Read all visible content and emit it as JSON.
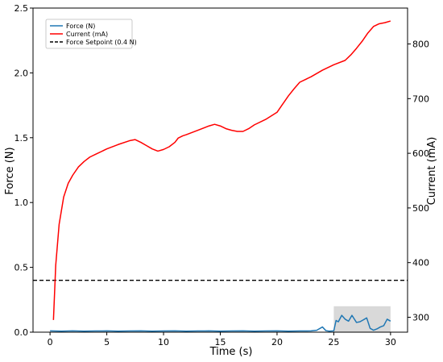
{
  "chart_data": {
    "type": "line",
    "title": "",
    "xlabel": "Time (s)",
    "ylabel_left": "Force (N)",
    "ylabel_right": "Current (mA)",
    "xlim": [
      -1.5,
      31.5
    ],
    "ylim_left": [
      0,
      2.5
    ],
    "ylim_right": [
      272.7,
      865.7
    ],
    "x_ticks": [
      0,
      5,
      10,
      15,
      20,
      25,
      30
    ],
    "y_ticks_left": [
      0.0,
      0.5,
      1.0,
      1.5,
      2.0,
      2.5
    ],
    "y_ticks_right": [
      300,
      400,
      500,
      600,
      700,
      800
    ],
    "grid": false,
    "legend_position": "top-left",
    "shaded_region": {
      "x": [
        25,
        30
      ],
      "y": [
        0,
        0.2
      ],
      "color": "#d9d9d9"
    },
    "series": [
      {
        "name": "Force (N)",
        "axis": "left",
        "color": "#1f77b4",
        "style": "solid",
        "x": [
          0,
          1,
          2,
          3,
          4,
          5,
          6,
          7,
          8,
          9,
          10,
          11,
          12,
          13,
          14,
          15,
          16,
          17,
          18,
          19,
          20,
          21,
          22,
          23,
          23.5,
          24,
          24.3,
          24.6,
          25,
          25.2,
          25.4,
          25.7,
          26,
          26.3,
          26.6,
          27,
          27.3,
          27.6,
          27.9,
          28.2,
          28.5,
          28.8,
          29.1,
          29.4,
          29.7,
          30
        ],
        "values": [
          0.01,
          0.008,
          0.01,
          0.008,
          0.009,
          0.01,
          0.008,
          0.009,
          0.01,
          0.008,
          0.009,
          0.01,
          0.008,
          0.009,
          0.01,
          0.008,
          0.009,
          0.01,
          0.008,
          0.009,
          0.01,
          0.008,
          0.009,
          0.01,
          0.015,
          0.04,
          0.012,
          0.008,
          0.01,
          0.09,
          0.08,
          0.13,
          0.1,
          0.085,
          0.13,
          0.075,
          0.08,
          0.095,
          0.11,
          0.03,
          0.015,
          0.025,
          0.04,
          0.05,
          0.1,
          0.085
        ]
      },
      {
        "name": "Current (mA)",
        "axis": "right",
        "color": "#ff0000",
        "style": "solid",
        "x": [
          0.3,
          0.5,
          0.8,
          1.2,
          1.6,
          2,
          2.5,
          3,
          3.5,
          4,
          5,
          6,
          7,
          7.5,
          8,
          8.5,
          9,
          9.5,
          10,
          10.5,
          11,
          11.3,
          11.7,
          12,
          13,
          14,
          14.5,
          15,
          15.5,
          16,
          16.5,
          17,
          17.5,
          18,
          19,
          20,
          20.5,
          21,
          21.5,
          22,
          23,
          24,
          25,
          26,
          26.5,
          27,
          27.5,
          28,
          28.5,
          29,
          29.5,
          30
        ],
        "values": [
          295,
          395,
          470,
          520,
          545,
          560,
          575,
          585,
          593,
          598,
          608,
          616,
          623,
          625,
          620,
          614,
          608,
          604,
          607,
          612,
          620,
          628,
          632,
          634,
          642,
          650,
          653,
          650,
          645,
          642,
          640,
          640,
          645,
          652,
          662,
          675,
          690,
          705,
          718,
          730,
          740,
          752,
          762,
          770,
          780,
          792,
          805,
          820,
          832,
          837,
          839,
          842
        ]
      },
      {
        "name": "Force Setpoint (0.4 N)",
        "axis": "left",
        "color": "#000000",
        "style": "dashed",
        "x": [
          -1.5,
          31.5
        ],
        "values": [
          0.4,
          0.4
        ]
      }
    ]
  }
}
